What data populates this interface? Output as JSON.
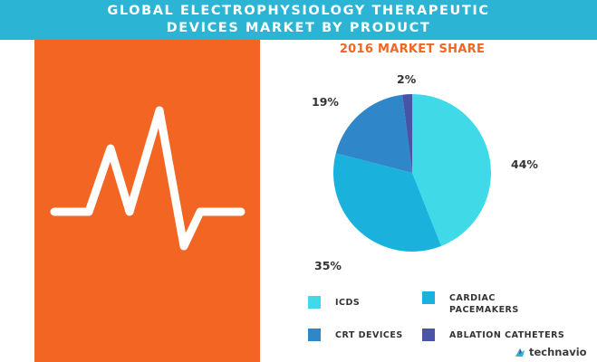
{
  "header": {
    "line1": "GLOBAL ELECTROPHYSIOLOGY THERAPEUTIC",
    "line2": "DEVICES MARKET BY PRODUCT"
  },
  "decor": {
    "icon": "heartbeat-icon",
    "panel_color": "#f26522",
    "header_color": "#2bb4d4"
  },
  "chart_data": {
    "type": "pie",
    "title": "2016 MARKET SHARE",
    "unit": "%",
    "slices": [
      {
        "name": "ICDS",
        "value": 44,
        "label": "44%",
        "color": "#3fd9e8"
      },
      {
        "name": "CARDIAC PACEMAKERS",
        "value": 35,
        "label": "35%",
        "color": "#1ab2dd"
      },
      {
        "name": "CRT DEVICES",
        "value": 19,
        "label": "19%",
        "color": "#2f86c8"
      },
      {
        "name": "ABLATION CATHETERS",
        "value": 2,
        "label": "2%",
        "color": "#4b53a6"
      }
    ],
    "legend": "bottom"
  },
  "legend_labels": {
    "icds": "ICDS",
    "cardiac": "CARDIAC PACEMAKERS",
    "crt": "CRT DEVICES",
    "ablation": "ABLATION CATHETERS"
  },
  "brand": {
    "name": "technavio",
    "icon": "technavio-logo-icon"
  }
}
